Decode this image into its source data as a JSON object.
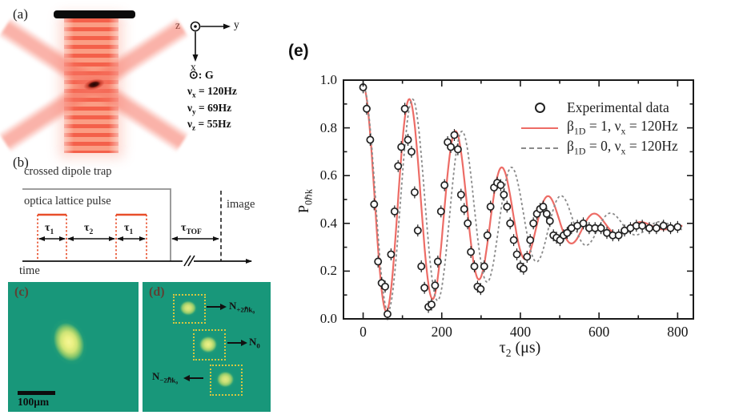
{
  "panel_a": {
    "label": "(a)",
    "axis": {
      "z": "z",
      "y": "y",
      "x": "x"
    },
    "gravity": "⊙: G",
    "frequencies": [
      "ν_{x} = 120Hz",
      "ν_{y} = 69Hz",
      "ν_{z} = 55Hz"
    ]
  },
  "panel_b": {
    "label": "(b)",
    "trap_label": "crossed dipole trap",
    "pulse_label": "optica lattice pulse",
    "tau1": "τ_{1}",
    "tau2": "τ_{2}",
    "tau_tof": "τ_{TOF}",
    "image_label": "image",
    "time_label": "time"
  },
  "panel_c": {
    "label": "(c)",
    "scale_bar": "100μm"
  },
  "panel_d": {
    "label": "(d)",
    "n_plus": "N_{+2ℏk₀}",
    "n_zero": "N_{0}",
    "n_minus": "N_{−2ℏk₀}"
  },
  "panel_e": {
    "label": "(e)"
  },
  "colors": {
    "red_curve": "#ed6c66",
    "gray_curve": "#8a8a8a",
    "marker": "#222222",
    "axis": "#1a1a1a",
    "teal_background": "#18977a",
    "beam_red": "#f4705a",
    "pulse_red": "#e84e2a",
    "dotted_box_yellow": "#d6c640"
  },
  "chart_data": {
    "type": "scatter",
    "title": "",
    "xlabel": "τ_{2} (μs)",
    "ylabel": "P_{0ℏk}",
    "xlim": [
      -50,
      840
    ],
    "ylim": [
      0,
      1.0
    ],
    "x_ticks": [
      0,
      200,
      400,
      600,
      800
    ],
    "x_minor_step": 100,
    "y_ticks": [
      0.0,
      0.2,
      0.4,
      0.6,
      0.8,
      1.0
    ],
    "y_minor_step": 0.1,
    "grid": false,
    "legend_position": "upper right",
    "legend": [
      {
        "label": "Experimental data",
        "type": "marker"
      },
      {
        "label": "β_{1D} = 1, ν_{x} = 120Hz",
        "type": "line",
        "color": "#ed6c66"
      },
      {
        "label": "β_{1D} = 0, ν_{x} = 120Hz",
        "type": "dashed",
        "color": "#8a8a8a"
      }
    ],
    "series": [
      {
        "name": "beta1D=1 fit",
        "style": "solid",
        "color": "#ed6c66",
        "model": {
          "baseline": 0.385,
          "center_amp": 0.115,
          "center_decay": 330,
          "amp": 0.475,
          "amp_decay": 395,
          "period": 118.2,
          "t_start": 0,
          "t_end": 812
        }
      },
      {
        "name": "beta1D=0 fit",
        "style": "dashed",
        "color": "#8a8a8a",
        "model": {
          "baseline": 0.385,
          "center_amp": 0.115,
          "center_decay": 330,
          "amp": 0.475,
          "amp_decay": 430,
          "period": 126.5,
          "t_start": 0,
          "t_end": 812
        }
      }
    ],
    "error_bar": 0.025,
    "points": [
      [
        0,
        0.97
      ],
      [
        9,
        0.88
      ],
      [
        18,
        0.75
      ],
      [
        28,
        0.48
      ],
      [
        38,
        0.24
      ],
      [
        47,
        0.15
      ],
      [
        56,
        0.135
      ],
      [
        62,
        0.02
      ],
      [
        71,
        0.27
      ],
      [
        80,
        0.45
      ],
      [
        89,
        0.64
      ],
      [
        97,
        0.72
      ],
      [
        106,
        0.88
      ],
      [
        114,
        0.75
      ],
      [
        123,
        0.7
      ],
      [
        131,
        0.53
      ],
      [
        139,
        0.37
      ],
      [
        148,
        0.22
      ],
      [
        156,
        0.13
      ],
      [
        166,
        0.05
      ],
      [
        174,
        0.06
      ],
      [
        183,
        0.14
      ],
      [
        190,
        0.24
      ],
      [
        198,
        0.45
      ],
      [
        207,
        0.56
      ],
      [
        215,
        0.74
      ],
      [
        223,
        0.72
      ],
      [
        232,
        0.77
      ],
      [
        241,
        0.71
      ],
      [
        249,
        0.52
      ],
      [
        257,
        0.46
      ],
      [
        266,
        0.4
      ],
      [
        274,
        0.28
      ],
      [
        283,
        0.22
      ],
      [
        291,
        0.135
      ],
      [
        299,
        0.125
      ],
      [
        308,
        0.22
      ],
      [
        316,
        0.35
      ],
      [
        324,
        0.47
      ],
      [
        333,
        0.55
      ],
      [
        341,
        0.57
      ],
      [
        350,
        0.56
      ],
      [
        358,
        0.52
      ],
      [
        366,
        0.47
      ],
      [
        374,
        0.4
      ],
      [
        383,
        0.33
      ],
      [
        391,
        0.27
      ],
      [
        400,
        0.22
      ],
      [
        408,
        0.21
      ],
      [
        417,
        0.26
      ],
      [
        425,
        0.33
      ],
      [
        433,
        0.4
      ],
      [
        442,
        0.44
      ],
      [
        450,
        0.46
      ],
      [
        458,
        0.47
      ],
      [
        467,
        0.44
      ],
      [
        475,
        0.41
      ],
      [
        484,
        0.35
      ],
      [
        492,
        0.34
      ],
      [
        501,
        0.33
      ],
      [
        510,
        0.35
      ],
      [
        519,
        0.36
      ],
      [
        530,
        0.38
      ],
      [
        545,
        0.39
      ],
      [
        560,
        0.4
      ],
      [
        575,
        0.38
      ],
      [
        590,
        0.38
      ],
      [
        605,
        0.38
      ],
      [
        620,
        0.36
      ],
      [
        635,
        0.35
      ],
      [
        650,
        0.35
      ],
      [
        665,
        0.37
      ],
      [
        680,
        0.38
      ],
      [
        695,
        0.39
      ],
      [
        710,
        0.39
      ],
      [
        728,
        0.38
      ],
      [
        746,
        0.38
      ],
      [
        764,
        0.39
      ],
      [
        782,
        0.38
      ],
      [
        800,
        0.385
      ]
    ]
  }
}
